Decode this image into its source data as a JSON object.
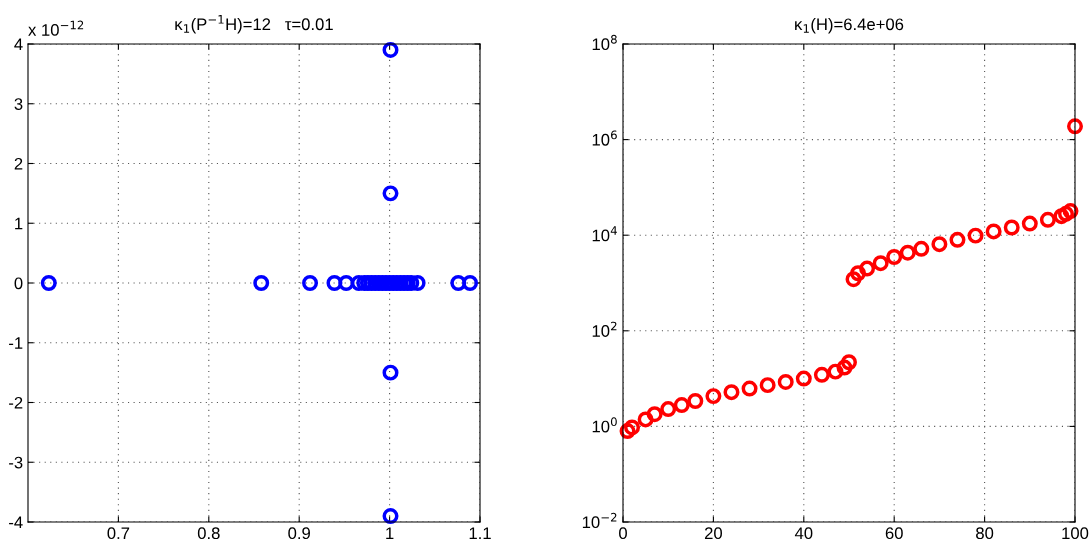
{
  "chart_data": [
    {
      "type": "scatter",
      "title": "κ$_{1}$(P$^{−1}$H)=12   τ=0.01",
      "marker": "circle",
      "grid": true,
      "annotations": [
        "x 10$^{−12}$"
      ],
      "xlim": [
        0.6,
        1.1
      ],
      "xticks": [
        0.7,
        0.8,
        0.9,
        1,
        1.1
      ],
      "ylim": [
        -4,
        4
      ],
      "yticks": [
        -4,
        -3,
        -2,
        -1,
        0,
        1,
        2,
        3,
        4
      ],
      "series": [
        {
          "color": "#0000ff",
          "x": [
            0.623,
            0.858,
            0.912,
            0.939,
            0.952,
            0.966,
            0.972,
            0.976,
            0.98,
            0.984,
            0.988,
            0.992,
            0.996,
            1.0,
            1.004,
            1.008,
            1.012,
            1.016,
            1.02,
            1.024,
            1.031,
            1.076,
            1.089,
            1.001,
            1.001,
            1.001,
            1.001
          ],
          "values": [
            0,
            0,
            0,
            0,
            0,
            0,
            0,
            0,
            0,
            0,
            0,
            0,
            0,
            0,
            0,
            0,
            0,
            0,
            0,
            0,
            0,
            0,
            0,
            3.9,
            1.5,
            -1.5,
            -3.9
          ]
        }
      ]
    },
    {
      "type": "scatter",
      "title": "κ$_{1}$(H)=6.4e+06",
      "marker": "circle",
      "grid": true,
      "log": "y",
      "xlim": [
        0,
        100
      ],
      "xticks": [
        0,
        20,
        40,
        60,
        80,
        100
      ],
      "ylim": [
        0.01,
        100000000
      ],
      "yticks": [
        {
          "value": 0.01,
          "label": "10$^{−2}$"
        },
        {
          "value": 1,
          "label": "10$^{0}$"
        },
        {
          "value": 100,
          "label": "10$^{2}$"
        },
        {
          "value": 10000,
          "label": "10$^{4}$"
        },
        {
          "value": 1000000,
          "label": "10$^{6}$"
        },
        {
          "value": 100000000,
          "label": "10$^{8}$"
        }
      ],
      "series": [
        {
          "color": "#ff0000",
          "x": [
            1,
            2,
            5,
            7,
            10,
            13,
            16,
            20,
            24,
            28,
            32,
            36,
            40,
            44,
            47,
            49,
            50,
            51,
            52,
            54,
            57,
            60,
            63,
            66,
            70,
            74,
            78,
            82,
            86,
            90,
            94,
            97,
            98,
            99,
            100
          ],
          "values": [
            0.8,
            0.95,
            1.4,
            1.8,
            2.3,
            2.8,
            3.4,
            4.3,
            5.2,
            6.2,
            7.3,
            8.5,
            10,
            12,
            14,
            17,
            22,
            1200,
            1600,
            2000,
            2600,
            3500,
            4300,
            5200,
            6500,
            8000,
            9800,
            12000,
            14500,
            17500,
            21000,
            25000,
            28000,
            32000,
            1900000
          ]
        }
      ]
    }
  ]
}
